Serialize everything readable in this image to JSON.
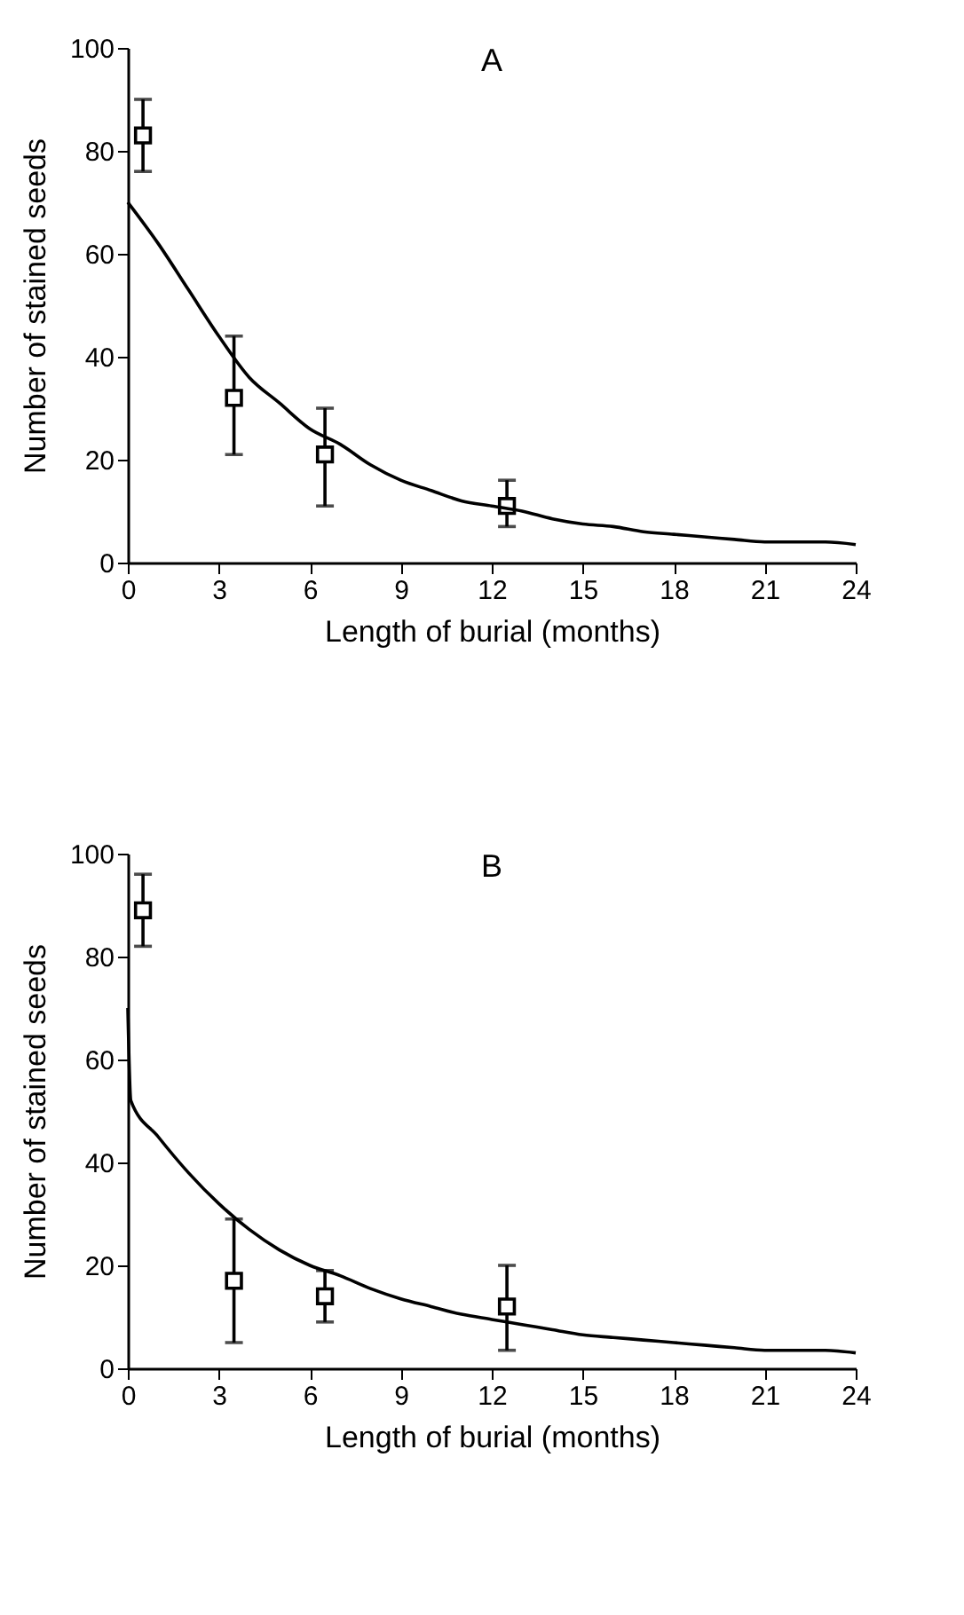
{
  "chart_data": [
    {
      "type": "scatter",
      "title": "A",
      "xlabel": "Length of burial (months)",
      "ylabel": "Number of stained seeds",
      "xlim": [
        0,
        24
      ],
      "xticks": [
        0,
        3,
        6,
        9,
        12,
        15,
        18,
        21,
        24
      ],
      "ylim": [
        0,
        100
      ],
      "yticks": [
        0,
        20,
        40,
        60,
        80,
        100
      ],
      "grid": false,
      "series": [
        {
          "color": "#000000",
          "marker": "square",
          "x": [
            0.5,
            3.5,
            6.5,
            12.5
          ],
          "values": [
            83,
            32,
            21,
            11
          ],
          "errors": [
            [
              76,
              90
            ],
            [
              21,
              44
            ],
            [
              11,
              30
            ],
            [
              7,
              16
            ]
          ]
        },
        {
          "type": "line",
          "color": "#000000",
          "line_style": "solid",
          "x": [
            0,
            1,
            2,
            3,
            4,
            5,
            6,
            7,
            8,
            9,
            10,
            11,
            12,
            13,
            14,
            15,
            16,
            17,
            18,
            19,
            20,
            21,
            22,
            23,
            24
          ],
          "values": [
            70,
            62,
            53,
            44,
            36,
            31,
            26,
            23,
            19,
            16,
            14,
            12,
            11,
            10,
            8.5,
            7.5,
            7,
            6,
            5.5,
            5,
            4.5,
            4,
            4,
            4,
            3.5
          ]
        }
      ]
    },
    {
      "type": "scatter",
      "title": "B",
      "xlabel": "Length of burial (months)",
      "ylabel": "Number of stained seeds",
      "xlim": [
        0,
        24
      ],
      "xticks": [
        0,
        3,
        6,
        9,
        12,
        15,
        18,
        21,
        24
      ],
      "ylim": [
        0,
        100
      ],
      "yticks": [
        0,
        20,
        40,
        60,
        80,
        100
      ],
      "grid": false,
      "series": [
        {
          "color": "#000000",
          "marker": "square",
          "x": [
            0.5,
            3.5,
            6.5,
            12.5
          ],
          "values": [
            89,
            17,
            14,
            12
          ],
          "errors": [
            [
              82,
              96
            ],
            [
              5,
              29
            ],
            [
              9,
              19
            ],
            [
              3.5,
              20
            ]
          ]
        },
        {
          "type": "line",
          "color": "#000000",
          "line_style": "solid",
          "x": [
            0,
            0.1,
            1,
            2,
            3,
            4,
            5,
            6,
            7,
            8,
            9,
            10,
            11,
            12,
            13,
            14,
            15,
            16,
            17,
            18,
            19,
            20,
            21,
            22,
            23,
            24
          ],
          "values": [
            70,
            52,
            45,
            38,
            32,
            27,
            23,
            20,
            18,
            15.5,
            13.5,
            12,
            10.5,
            9.5,
            8.5,
            7.5,
            6.5,
            6,
            5.5,
            5,
            4.5,
            4,
            3.5,
            3.5,
            3.5,
            3
          ]
        }
      ]
    }
  ]
}
